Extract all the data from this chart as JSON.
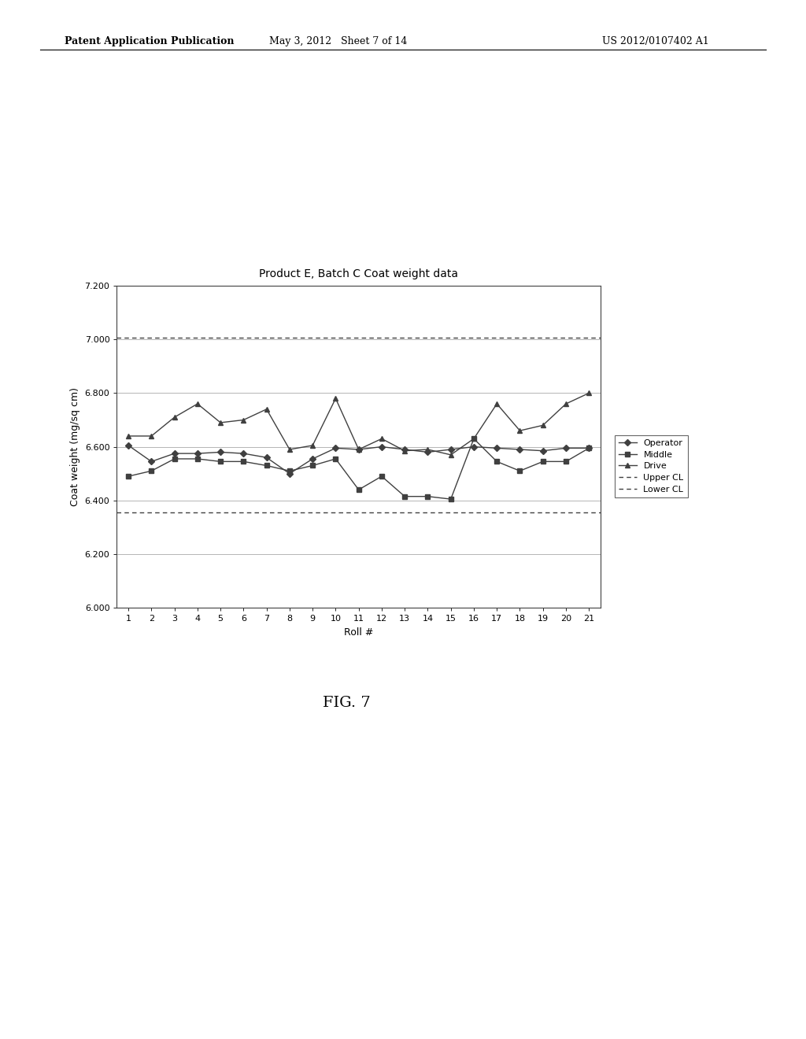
{
  "title": "Product E, Batch C Coat weight data",
  "xlabel": "Roll #",
  "ylabel": "Coat weight (mg/sq cm)",
  "xlim": [
    0.5,
    21.5
  ],
  "ylim": [
    6.0,
    7.2
  ],
  "yticks": [
    6.0,
    6.2,
    6.4,
    6.6,
    6.8,
    7.0,
    7.2
  ],
  "xticks": [
    1,
    2,
    3,
    4,
    5,
    6,
    7,
    8,
    9,
    10,
    11,
    12,
    13,
    14,
    15,
    16,
    17,
    18,
    19,
    20,
    21
  ],
  "upper_cl": 7.005,
  "lower_cl": 6.355,
  "operator": [
    6.605,
    6.545,
    6.575,
    6.575,
    6.58,
    6.575,
    6.56,
    6.5,
    6.555,
    6.595,
    6.59,
    6.6,
    6.59,
    6.58,
    6.59,
    6.6,
    6.595,
    6.59,
    6.585,
    6.595,
    6.595
  ],
  "middle": [
    6.49,
    6.51,
    6.555,
    6.555,
    6.545,
    6.545,
    6.53,
    6.51,
    6.53,
    6.555,
    6.44,
    6.49,
    6.415,
    6.415,
    6.405,
    6.63,
    6.545,
    6.51,
    6.545,
    6.545,
    6.595
  ],
  "drive": [
    6.64,
    6.64,
    6.71,
    6.76,
    6.69,
    6.7,
    6.74,
    6.59,
    6.605,
    6.78,
    6.59,
    6.63,
    6.585,
    6.59,
    6.57,
    6.63,
    6.76,
    6.66,
    6.68,
    6.76,
    6.8
  ],
  "line_color": "#404040",
  "marker_color": "#404040",
  "background_color": "#ffffff",
  "title_fontsize": 10,
  "axis_fontsize": 9,
  "tick_fontsize": 8,
  "legend_fontsize": 8,
  "header_left": "Patent Application Publication",
  "header_mid": "May 3, 2012   Sheet 7 of 14",
  "header_right": "US 2012/0107402 A1",
  "fig_label": "FIG. 7",
  "header_fontsize": 9,
  "fig_label_fontsize": 14
}
